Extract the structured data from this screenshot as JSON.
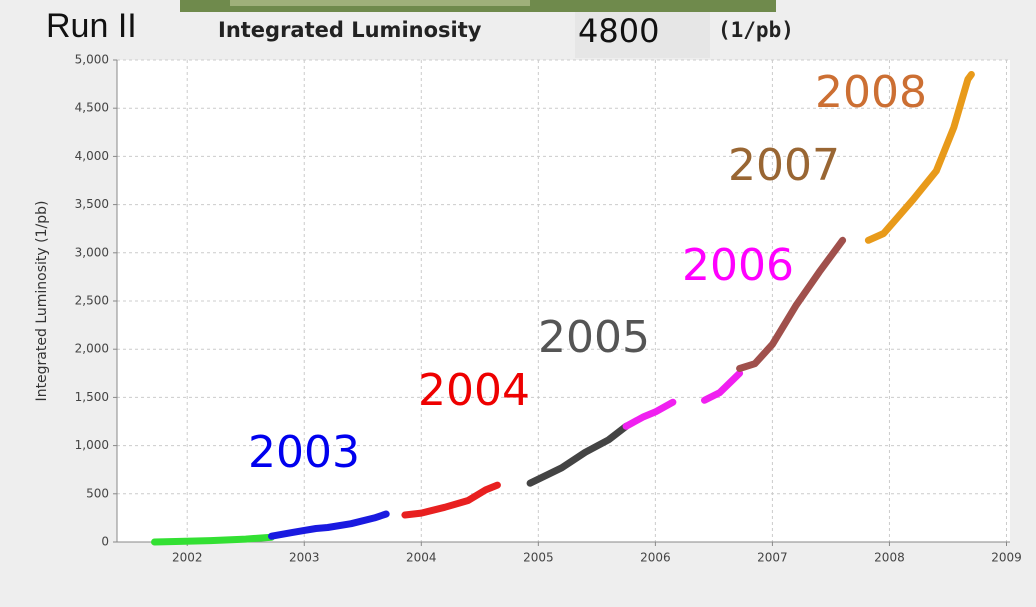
{
  "chart_data": {
    "type": "line",
    "run_label": "Run II",
    "title": "Integrated Luminosity",
    "title_unit": "(1/pb)",
    "header_value": "4800",
    "ylabel": "Integrated Luminosity (1/pb)",
    "xlim": [
      2001.4,
      2009.03
    ],
    "xticks": [
      2002,
      2003,
      2004,
      2005,
      2006,
      2007,
      2008,
      2009
    ],
    "ylim": [
      0,
      5000
    ],
    "yticks": [
      0,
      {
        "value": 500,
        "label": "500"
      },
      {
        "value": 1000,
        "label": "1,000"
      },
      {
        "value": 1500,
        "label": "1,500"
      },
      {
        "value": 2000,
        "label": "2,000"
      },
      {
        "value": 2500,
        "label": "2,500"
      },
      {
        "value": 3000,
        "label": "3,000"
      },
      {
        "value": 3500,
        "label": "3,500"
      },
      {
        "value": 4000,
        "label": "4,000"
      },
      {
        "value": 4500,
        "label": "4,500"
      },
      {
        "value": 5000,
        "label": "5,000"
      }
    ],
    "grid": true,
    "series": [
      {
        "color": "#33e033",
        "x": [
          2001.72,
          2001.9,
          2002.2,
          2002.5,
          2002.72
        ],
        "values": [
          0,
          5,
          15,
          30,
          50
        ]
      },
      {
        "name": "2003",
        "color": "#1a1ae0",
        "label_color": "#0000ee",
        "x": [
          2002.72,
          2002.9,
          2003.0,
          2003.1,
          2003.2,
          2003.4,
          2003.6,
          2003.7
        ],
        "values": [
          60,
          100,
          120,
          140,
          150,
          190,
          250,
          290
        ]
      },
      {
        "name": "2004",
        "color": "#e82020",
        "label_color": "#ee0000",
        "x": [
          2003.86,
          2004.0,
          2004.2,
          2004.4,
          2004.55,
          2004.65
        ],
        "values": [
          280,
          300,
          360,
          430,
          540,
          590
        ]
      },
      {
        "name": "2005",
        "color": "#444444",
        "label_color": "#555555",
        "x": [
          2004.93,
          2005.2,
          2005.4,
          2005.6,
          2005.75
        ],
        "values": [
          610,
          770,
          930,
          1060,
          1200
        ]
      },
      {
        "name": "2006",
        "color": "#f020f0",
        "label_color": "#ff00ff",
        "x": [
          2005.75,
          2005.9,
          2006.0,
          2006.15,
          2006.3,
          2006.42,
          2006.55,
          2006.72
        ],
        "values": [
          1200,
          1300,
          1350,
          1450,
          null,
          1470,
          1550,
          1750
        ]
      },
      {
        "name": "2007",
        "color": "#a0504c",
        "label_color": "#996633",
        "x": [
          2006.72,
          2006.85,
          2007.0,
          2007.2,
          2007.4,
          2007.6
        ],
        "values": [
          1800,
          1850,
          2050,
          2450,
          2800,
          3130
        ]
      },
      {
        "name": "2008",
        "color": "#e89a1a",
        "label_color": "#cc6f33",
        "x": [
          2007.82,
          2007.95,
          2008.2,
          2008.4,
          2008.55,
          2008.67,
          2008.7
        ],
        "values": [
          3130,
          3200,
          3550,
          3850,
          4300,
          4800,
          4850
        ]
      }
    ]
  }
}
